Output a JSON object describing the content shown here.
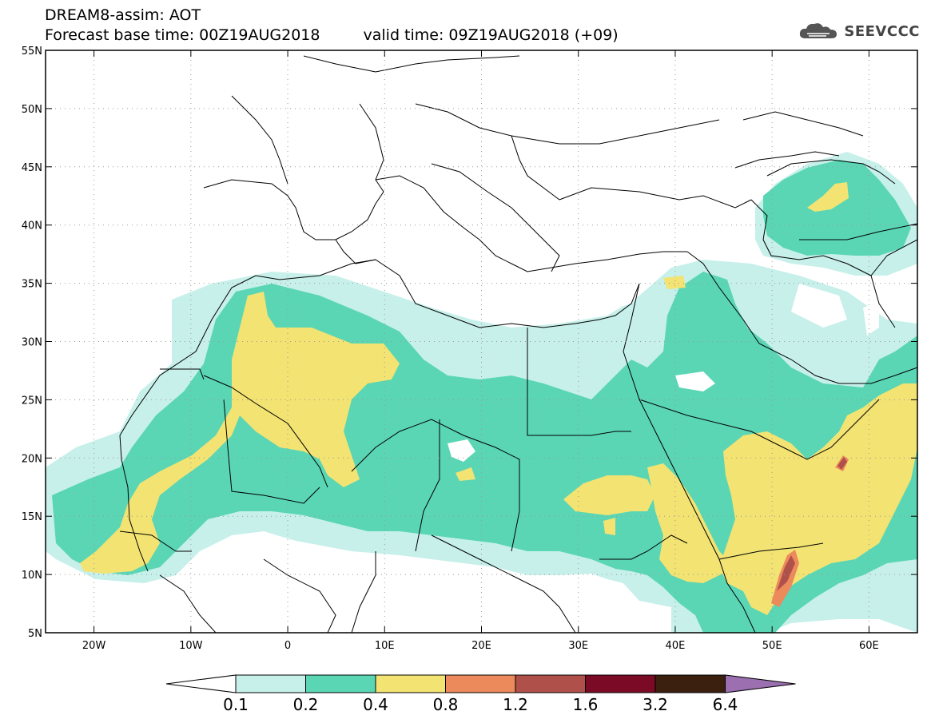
{
  "header": {
    "title": "DREAM8-assim: AOT",
    "base_time_label": "Forecast base time: 00Z19AUG2018",
    "valid_time_label": "valid time: 09Z19AUG2018 (+09)"
  },
  "logo": {
    "text": "SEEVCCC",
    "icon": "cloud-icon"
  },
  "map": {
    "lon_range": [
      -25,
      65
    ],
    "lat_range": [
      5,
      55
    ],
    "lon_ticks": [
      {
        "value": -20,
        "label": "20W"
      },
      {
        "value": -10,
        "label": "10W"
      },
      {
        "value": 0,
        "label": "0"
      },
      {
        "value": 10,
        "label": "10E"
      },
      {
        "value": 20,
        "label": "20E"
      },
      {
        "value": 30,
        "label": "30E"
      },
      {
        "value": 40,
        "label": "40E"
      },
      {
        "value": 50,
        "label": "50E"
      },
      {
        "value": 60,
        "label": "60E"
      }
    ],
    "lat_ticks": [
      {
        "value": 5,
        "label": "5N"
      },
      {
        "value": 10,
        "label": "10N"
      },
      {
        "value": 15,
        "label": "15N"
      },
      {
        "value": 20,
        "label": "20N"
      },
      {
        "value": 25,
        "label": "25N"
      },
      {
        "value": 30,
        "label": "30N"
      },
      {
        "value": 35,
        "label": "35N"
      },
      {
        "value": 40,
        "label": "40N"
      },
      {
        "value": 45,
        "label": "45N"
      },
      {
        "value": 50,
        "label": "50N"
      },
      {
        "value": 55,
        "label": "55N"
      }
    ]
  },
  "colorbar": {
    "levels": [
      "0.1",
      "0.2",
      "0.4",
      "0.8",
      "1.2",
      "1.6",
      "3.2",
      "6.4"
    ],
    "colors": [
      "#c7f0ea",
      "#5ad6b4",
      "#f3e373",
      "#ec8a5c",
      "#b0504a",
      "#7a0a25",
      "#3b2010"
    ],
    "under_color": "#ffffff",
    "over_color": "#9b6fb0"
  }
}
